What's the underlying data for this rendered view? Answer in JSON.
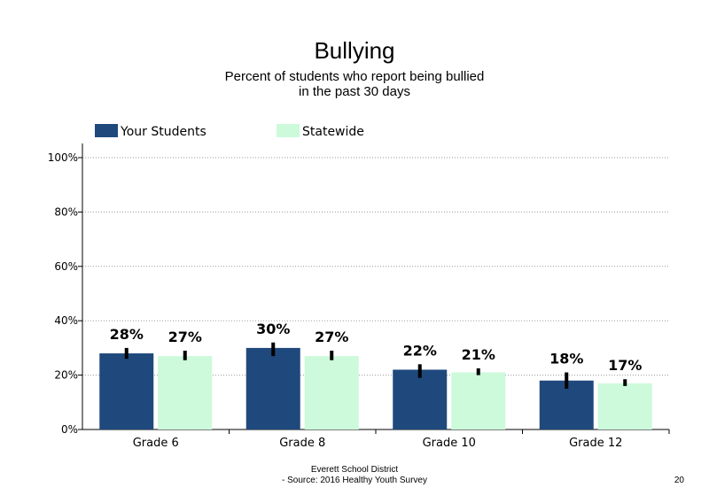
{
  "chart_data": {
    "type": "bar",
    "title": "Bullying",
    "subtitle": "Percent of students who report being bullied in the past 30 days",
    "categories": [
      "Grade 6",
      "Grade 8",
      "Grade 10",
      "Grade 12"
    ],
    "series": [
      {
        "name": "Your Students",
        "values": [
          28,
          30,
          22,
          18
        ],
        "labels": [
          "28%",
          "30%",
          "22%",
          "18%"
        ],
        "error_low": [
          26,
          27,
          19,
          15
        ],
        "error_high": [
          30,
          32,
          24,
          21
        ],
        "color": "#1f497d"
      },
      {
        "name": "Statewide",
        "values": [
          27,
          27,
          21,
          17
        ],
        "labels": [
          "27%",
          "27%",
          "21%",
          "17%"
        ],
        "error_low": [
          25.5,
          25.5,
          20,
          16
        ],
        "error_high": [
          29,
          29,
          22.5,
          18.5
        ],
        "color": "#ccfadb"
      }
    ],
    "yticks": [
      "0%",
      "20%",
      "40%",
      "60%",
      "80%",
      "100%"
    ],
    "ylim": [
      0,
      100
    ],
    "grid": true,
    "legend": "top"
  },
  "footer": {
    "line1": "Everett School District",
    "line2": "- Source: 2016 Healthy Youth Survey"
  },
  "page_number": "20"
}
